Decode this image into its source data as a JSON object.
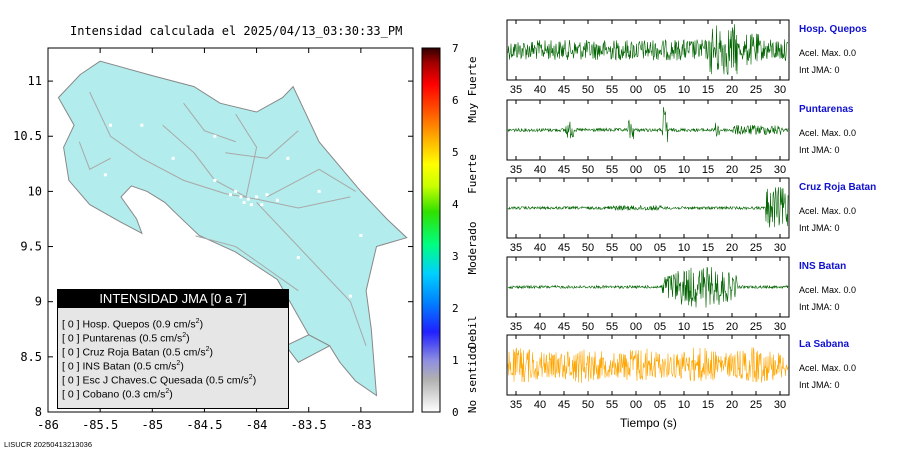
{
  "map": {
    "title": "Intensidad calculada el 2025/04/13_03:30:33_PM",
    "x_ticks": [
      "-86",
      "-85.5",
      "-85",
      "-84.5",
      "-84",
      "-83.5",
      "-83"
    ],
    "y_ticks": [
      "11",
      "10.5",
      "10",
      "9.5",
      "9",
      "8.5",
      "8"
    ],
    "land_color": "#b3ecec"
  },
  "legend": {
    "title": "INTENSIDAD JMA [0 a 7]",
    "entries": [
      {
        "level": "[ 0 ]",
        "name": "Hosp. Quepos",
        "value": "(0.9 cm/s",
        "exp": "2",
        "close": ")"
      },
      {
        "level": "[ 0 ]",
        "name": "Puntarenas",
        "value": "(0.5 cm/s",
        "exp": "2",
        "close": ")"
      },
      {
        "level": "[ 0 ]",
        "name": "Cruz Roja Batan",
        "value": "(0.5 cm/s",
        "exp": "2",
        "close": ")"
      },
      {
        "level": "[ 0 ]",
        "name": "INS Batan",
        "value": "(0.5 cm/s",
        "exp": "2",
        "close": ")"
      },
      {
        "level": "[ 0 ]",
        "name": "Esc J Chaves.C Quesada",
        "value": "(0.5 cm/s",
        "exp": "2",
        "close": ")"
      },
      {
        "level": "[ 0 ]",
        "name": "Cobano",
        "value": "(0.3 cm/s",
        "exp": "2",
        "close": ")"
      }
    ]
  },
  "scale": {
    "ticks": [
      "0",
      "1",
      "2",
      "3",
      "4",
      "5",
      "6",
      "7"
    ],
    "labels": [
      "No sentido",
      "Debil",
      "Moderado",
      "Fuerte",
      "Muy Fuerte"
    ]
  },
  "footer": "LISUCR 20250413213036",
  "chart_data": {
    "type": "line",
    "xlabel": "Tiempo (s)",
    "x_tick_labels": [
      "35",
      "40",
      "45",
      "50",
      "55",
      "00",
      "05",
      "10",
      "15",
      "20",
      "25",
      "30"
    ],
    "series": [
      {
        "name": "Hosp. Quepos",
        "pga_label": "Acel. Max. 0.0",
        "jma_label": "Int JMA: 0",
        "color": "#006400",
        "profile": "quepos"
      },
      {
        "name": "Puntarenas",
        "pga_label": "Acel. Max. 0.0",
        "jma_label": "Int JMA: 0",
        "color": "#006400",
        "profile": "puntarenas"
      },
      {
        "name": "Cruz Roja Batan",
        "pga_label": "Acel. Max. 0.0",
        "jma_label": "Int JMA: 0",
        "color": "#006400",
        "profile": "cruzroja"
      },
      {
        "name": "INS Batan",
        "pga_label": "Acel. Max. 0.0",
        "jma_label": "Int JMA: 0",
        "color": "#006400",
        "profile": "insbatan"
      },
      {
        "name": "La Sabana",
        "pga_label": "Acel. Max. 0.0",
        "jma_label": "Int JMA: 0",
        "color": "#ffa500",
        "profile": "sabana"
      }
    ]
  }
}
